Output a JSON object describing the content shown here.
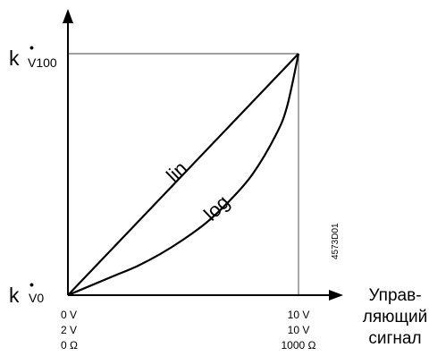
{
  "chart_data": {
    "type": "line",
    "title": "",
    "y_labels": {
      "top": {
        "main": "k",
        "sub": "V100"
      },
      "bottom": {
        "main": "k",
        "sub": "V0"
      }
    },
    "x_axis_label": [
      "Управ-",
      "ляющий",
      "сигнал"
    ],
    "x_start_labels": [
      "0 V",
      "2 V",
      "0 Ω"
    ],
    "x_end_labels": [
      "10 V",
      "10 V",
      "1000 Ω"
    ],
    "drawing_code": "4573D01",
    "xlim": [
      0,
      1
    ],
    "ylim": [
      0,
      1
    ],
    "series": [
      {
        "name": "lin",
        "x": [
          0,
          0.25,
          0.5,
          0.75,
          1
        ],
        "y": [
          0,
          0.25,
          0.5,
          0.75,
          1
        ]
      },
      {
        "name": "log",
        "x": [
          0,
          0.1,
          0.2,
          0.3,
          0.4,
          0.5,
          0.6,
          0.7,
          0.8,
          0.9,
          0.95,
          1
        ],
        "y": [
          0,
          0.04,
          0.08,
          0.12,
          0.17,
          0.23,
          0.3,
          0.39,
          0.5,
          0.66,
          0.78,
          1
        ]
      }
    ]
  }
}
